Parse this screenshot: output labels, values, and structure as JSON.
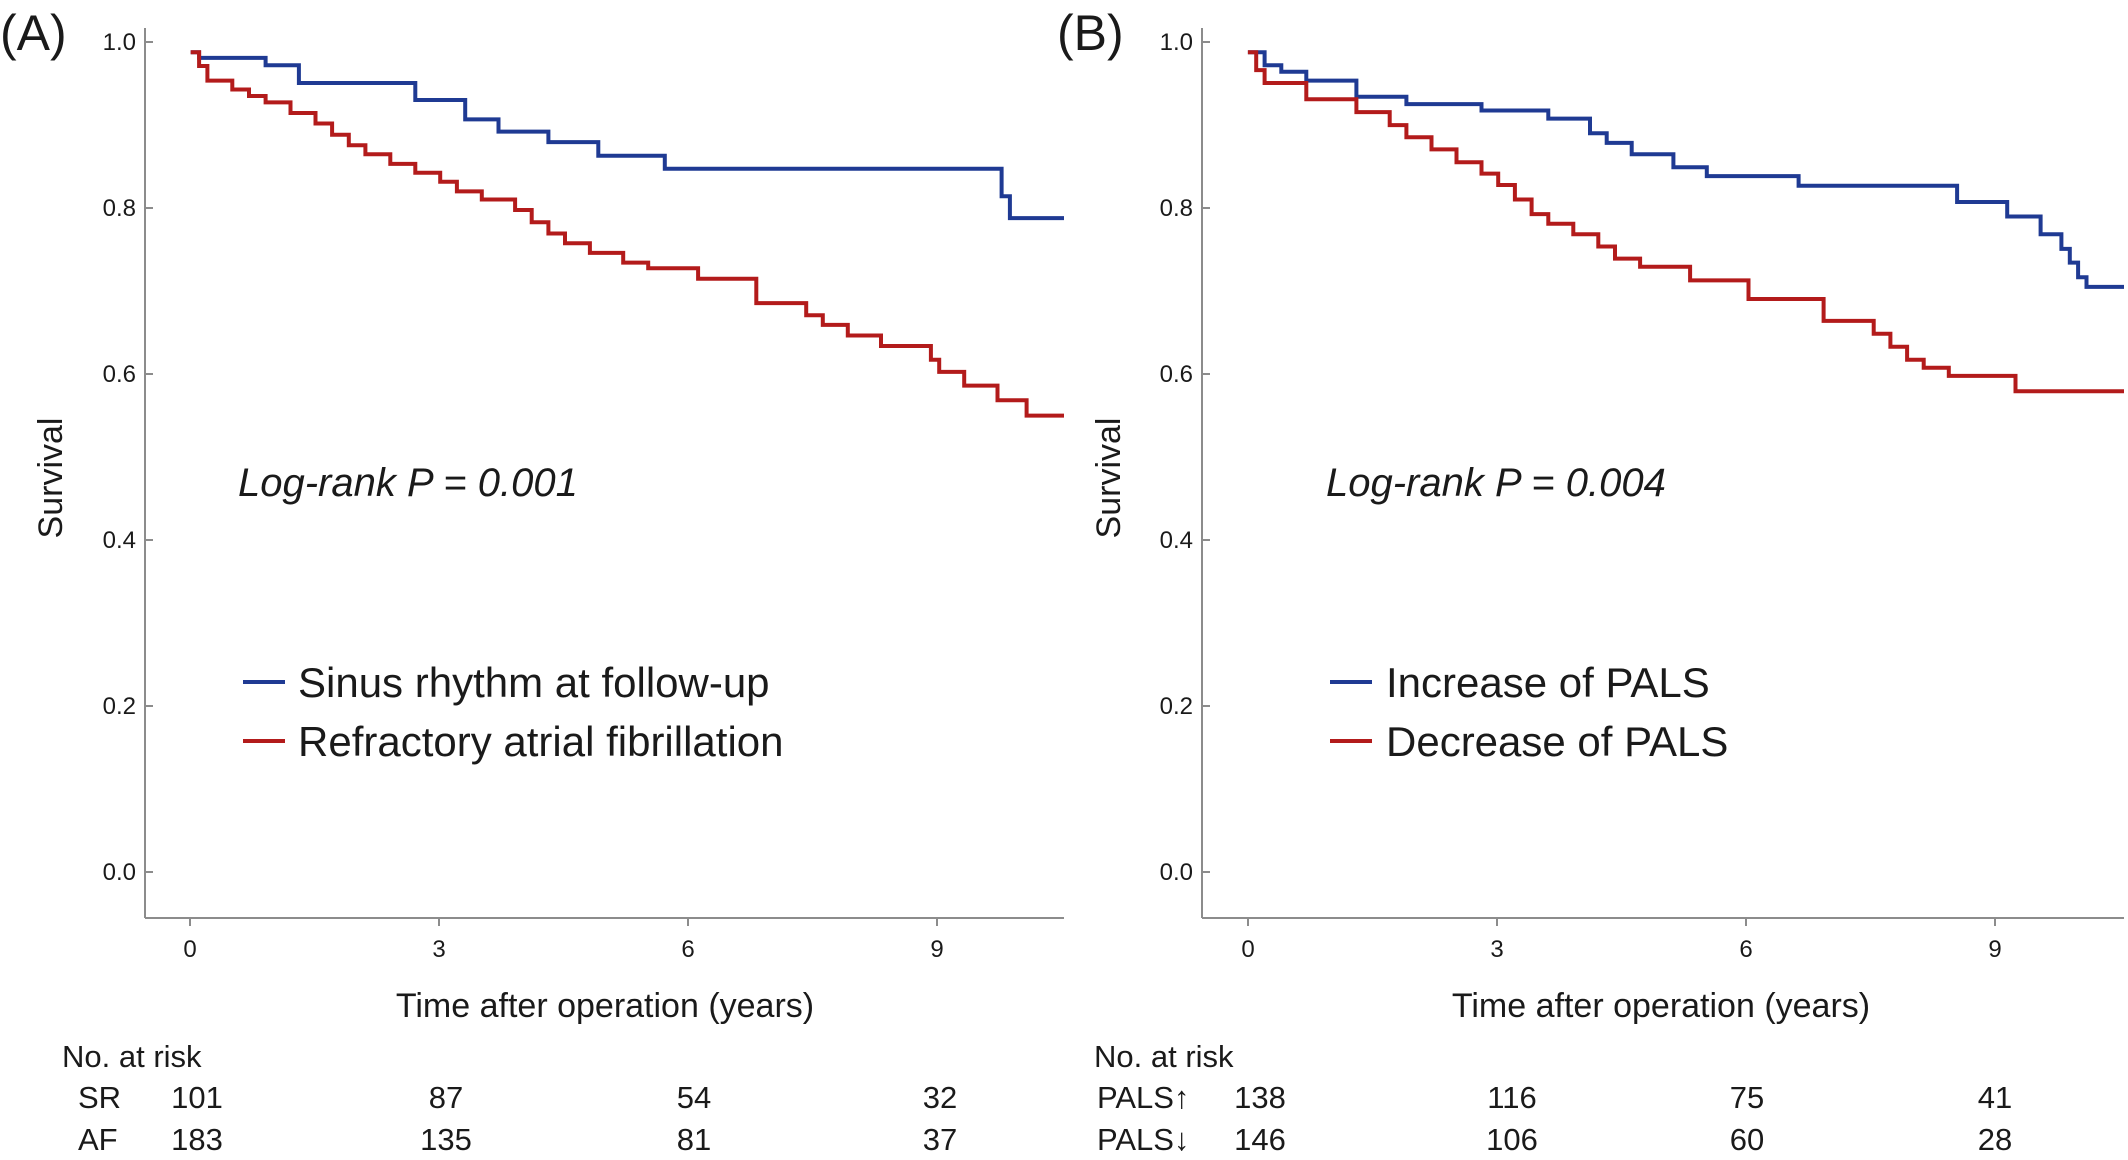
{
  "colors": {
    "blue": "#1f3a93",
    "red": "#b31b1b",
    "axis": "#8c8c8c",
    "text": "#1a1a1a"
  },
  "chart_data": [
    {
      "type": "line",
      "panel_label": "(A)",
      "title": "",
      "xlabel": "Time after operation (years)",
      "ylabel": "Survival",
      "xlim": [
        -0.55,
        10.5
      ],
      "ylim": [
        -0.07,
        1.03
      ],
      "xticks": [
        0,
        3,
        6,
        9
      ],
      "yticks": [
        0.0,
        0.2,
        0.4,
        0.6,
        0.8,
        1.0
      ],
      "ytick_labels": [
        "0.0",
        "0.2",
        "0.4",
        "0.6",
        "0.8",
        "1.0"
      ],
      "annotation": "Log-rank P = 0.001",
      "legend_position": "center",
      "series": [
        {
          "name": "Sinus rhythm at follow-up",
          "color": "#1f3a93",
          "x": [
            0,
            0.1,
            0.9,
            1.3,
            2.7,
            3.3,
            3.7,
            4.3,
            4.9,
            5.7,
            9.75,
            9.85,
            10.5
          ],
          "y": [
            1.0,
            0.993,
            0.984,
            0.962,
            0.941,
            0.917,
            0.902,
            0.889,
            0.872,
            0.856,
            0.822,
            0.795,
            0.795
          ]
        },
        {
          "name": "Refractory atrial fibrillation",
          "color": "#b31b1b",
          "x": [
            0,
            0.1,
            0.2,
            0.5,
            0.7,
            0.9,
            1.2,
            1.5,
            1.7,
            1.9,
            2.1,
            2.4,
            2.7,
            3.0,
            3.2,
            3.5,
            3.9,
            4.1,
            4.3,
            4.5,
            4.8,
            5.2,
            5.5,
            6.1,
            6.8,
            7.4,
            7.6,
            7.9,
            8.3,
            8.9,
            9.0,
            9.3,
            9.7,
            10.05,
            10.5
          ],
          "y": [
            1.0,
            0.983,
            0.965,
            0.954,
            0.946,
            0.938,
            0.925,
            0.912,
            0.898,
            0.885,
            0.874,
            0.862,
            0.851,
            0.84,
            0.828,
            0.818,
            0.805,
            0.79,
            0.776,
            0.764,
            0.752,
            0.74,
            0.733,
            0.72,
            0.69,
            0.675,
            0.663,
            0.65,
            0.637,
            0.62,
            0.605,
            0.588,
            0.57,
            0.551,
            0.551
          ]
        }
      ],
      "risk_table": {
        "header": "No. at risk",
        "rows": [
          {
            "label": "SR",
            "values": [
              "101",
              "87",
              "54",
              "32"
            ]
          },
          {
            "label": "AF",
            "values": [
              "183",
              "135",
              "81",
              "37"
            ]
          }
        ]
      }
    },
    {
      "type": "line",
      "panel_label": "(B)",
      "title": "",
      "xlabel": "Time after operation (years)",
      "ylabel": "Survival",
      "xlim": [
        -0.55,
        10.5
      ],
      "ylim": [
        -0.07,
        1.03
      ],
      "xticks": [
        0,
        3,
        6,
        9
      ],
      "yticks": [
        0.0,
        0.2,
        0.4,
        0.6,
        0.8,
        1.0
      ],
      "ytick_labels": [
        "0.0",
        "0.2",
        "0.4",
        "0.6",
        "0.8",
        "1.0"
      ],
      "annotation": "Log-rank P = 0.004",
      "legend_position": "center",
      "series": [
        {
          "name": "Increase of PALS",
          "color": "#1f3a93",
          "x": [
            0,
            0.2,
            0.4,
            0.7,
            1.3,
            1.9,
            2.8,
            3.6,
            4.1,
            4.3,
            4.6,
            5.1,
            5.5,
            6.6,
            8.5,
            9.1,
            9.5,
            9.75,
            9.85,
            9.95,
            10.05,
            10.5
          ],
          "y": [
            1.0,
            0.984,
            0.976,
            0.965,
            0.945,
            0.936,
            0.928,
            0.918,
            0.9,
            0.888,
            0.874,
            0.858,
            0.847,
            0.835,
            0.815,
            0.797,
            0.775,
            0.757,
            0.74,
            0.722,
            0.71,
            0.71
          ]
        },
        {
          "name": "Decrease of PALS",
          "color": "#b31b1b",
          "x": [
            0,
            0.1,
            0.2,
            0.7,
            1.3,
            1.7,
            1.9,
            2.2,
            2.5,
            2.8,
            3.0,
            3.2,
            3.4,
            3.6,
            3.9,
            4.2,
            4.4,
            4.7,
            5.3,
            6.0,
            6.9,
            7.5,
            7.7,
            7.9,
            8.1,
            8.4,
            9.2,
            10.5
          ],
          "y": [
            1.0,
            0.978,
            0.962,
            0.942,
            0.926,
            0.91,
            0.895,
            0.88,
            0.864,
            0.85,
            0.836,
            0.818,
            0.8,
            0.788,
            0.775,
            0.76,
            0.745,
            0.735,
            0.718,
            0.695,
            0.668,
            0.652,
            0.636,
            0.62,
            0.61,
            0.6,
            0.581,
            0.581
          ]
        }
      ],
      "risk_table": {
        "header": "No. at risk",
        "rows": [
          {
            "label": "PALS↑",
            "values": [
              "138",
              "116",
              "75",
              "41"
            ]
          },
          {
            "label": "PALS↓",
            "values": [
              "146",
              "106",
              "60",
              "28"
            ]
          }
        ]
      }
    }
  ]
}
